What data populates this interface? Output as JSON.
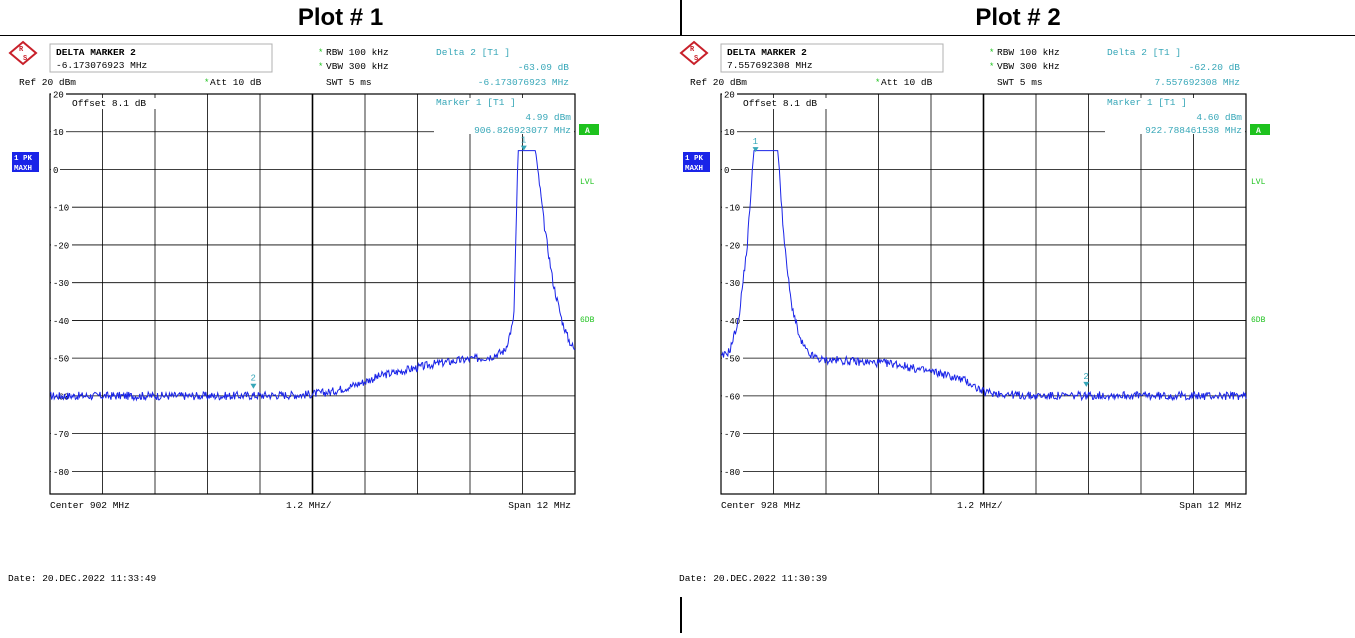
{
  "headers": {
    "plot1": "Plot # 1",
    "plot2": "Plot # 2"
  },
  "colors": {
    "trace": "#1a24e8",
    "marker_text": "#37a7b8",
    "limit_label": "#1ec21e",
    "badge_bg": "#1ec21e",
    "side_badge_bg": "#1a24e8"
  },
  "chart_data": [
    {
      "type": "line",
      "title": "Plot # 1",
      "header": {
        "delta_label": "DELTA MARKER 2",
        "delta_value": "-6.173076923 MHz",
        "rbw": "RBW 100 kHz",
        "vbw": "VBW 300 kHz",
        "swt": "SWT 5 ms",
        "ref": "Ref  20 dBm",
        "att": "Att  10 dB",
        "offset": "Offset  8.1 dB",
        "delta2_label": "Delta 2 [T1 ]",
        "delta2_db": "-63.09 dB",
        "delta2_freq": "-6.173076923 MHz",
        "marker1_label": "Marker 1 [T1 ]",
        "marker1_dbm": "4.99 dBm",
        "marker1_freq": "906.826923077 MHz",
        "mode1": "1 PK",
        "mode2": "MAXH",
        "badge": "A",
        "lvl": "LVL",
        "sixdb": "6DB"
      },
      "ylim": [
        -86,
        20
      ],
      "yticks": [
        20,
        10,
        0,
        -10,
        -20,
        -30,
        -40,
        -50,
        -60,
        -70,
        -80
      ],
      "ytick_labels": [
        "20",
        "10",
        "0",
        "-10",
        "-20",
        "-30",
        "-40",
        "-50",
        "-60",
        "-70",
        "-80"
      ],
      "x_center_mhz": 902,
      "x_span_mhz": 12,
      "xlim": [
        896,
        908
      ],
      "x_footer_left": "Center  902 MHz",
      "x_footer_mid": "1.2 MHz/",
      "x_footer_right": "Span  12 MHz",
      "date": "Date: 20.DEC.2022  11:33:49",
      "series": [
        {
          "x": [
            896,
            897,
            898,
            899,
            900,
            901.2,
            901.8,
            902.4,
            903,
            903.6,
            904.2,
            904.8,
            905.4,
            905.8,
            906.1,
            906.4,
            906.6,
            906.7,
            907.1,
            907.3,
            907.5,
            907.7,
            907.85,
            908
          ],
          "y": [
            -60,
            -60,
            -60,
            -60,
            -60,
            -59.8,
            -59.7,
            -59,
            -57,
            -54.5,
            -53,
            -51.5,
            -50.5,
            -50,
            -49.5,
            -48,
            -40,
            5,
            5,
            -15,
            -30,
            -40,
            -45,
            -48
          ]
        }
      ],
      "markers": [
        {
          "label": "1",
          "x": 906.83,
          "y": 4.99
        },
        {
          "label": "2",
          "x": 900.65,
          "y": -58.1
        }
      ]
    },
    {
      "type": "line",
      "title": "Plot # 2",
      "header": {
        "delta_label": "DELTA MARKER 2",
        "delta_value": "7.557692308 MHz",
        "rbw": "RBW 100 kHz",
        "vbw": "VBW 300 kHz",
        "swt": "SWT 5 ms",
        "ref": "Ref  20 dBm",
        "att": "Att  10 dB",
        "offset": "Offset  8.1 dB",
        "delta2_label": "Delta 2 [T1 ]",
        "delta2_db": "-62.20 dB",
        "delta2_freq": "7.557692308 MHz",
        "marker1_label": "Marker 1 [T1 ]",
        "marker1_dbm": "4.60 dBm",
        "marker1_freq": "922.788461538 MHz",
        "mode1": "1 PK",
        "mode2": "MAXH",
        "badge": "A",
        "lvl": "LVL",
        "sixdb": "6DB"
      },
      "ylim": [
        -86,
        20
      ],
      "yticks": [
        20,
        10,
        0,
        -10,
        -20,
        -30,
        -40,
        -50,
        -60,
        -70,
        -80
      ],
      "ytick_labels": [
        "20",
        "10",
        "0",
        "-10",
        "-20",
        "-30",
        "-40",
        "-50",
        "-60",
        "-70",
        "-80"
      ],
      "x_center_mhz": 928,
      "x_span_mhz": 12,
      "xlim": [
        922,
        934
      ],
      "x_footer_left": "Center  928 MHz",
      "x_footer_mid": "1.2 MHz/",
      "x_footer_right": "Span  12 MHz",
      "date": "Date: 20.DEC.2022  11:30:39",
      "series": [
        {
          "x": [
            922,
            922.2,
            922.4,
            922.6,
            922.75,
            923.3,
            923.45,
            923.6,
            923.8,
            924,
            924.3,
            924.6,
            925.2,
            926,
            926.5,
            927,
            927.6,
            928,
            929,
            930,
            931,
            932,
            933,
            934
          ],
          "y": [
            -50,
            -48,
            -40,
            -20,
            5,
            5,
            -20,
            -35,
            -45,
            -49,
            -50.5,
            -50.5,
            -51,
            -51.5,
            -53,
            -54,
            -56,
            -59,
            -60,
            -60,
            -59.8,
            -60,
            -60,
            -60
          ]
        }
      ],
      "markers": [
        {
          "label": "1",
          "x": 922.79,
          "y": 4.6
        },
        {
          "label": "2",
          "x": 930.35,
          "y": -57.6
        }
      ]
    }
  ]
}
